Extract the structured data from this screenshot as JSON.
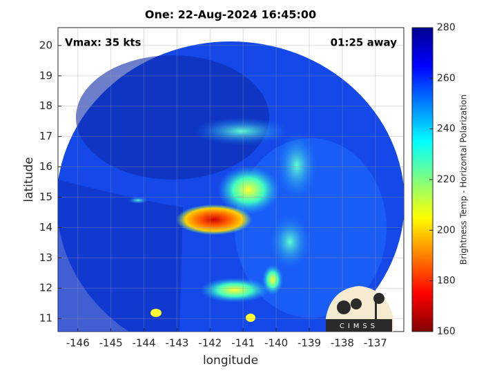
{
  "chart_data": {
    "type": "map",
    "title": "One: 22-Aug-2024 16:45:00",
    "annotations": [
      "Vmax: 35 kts",
      "01:25 away"
    ],
    "xlabel": "longitude",
    "ylabel": "latitude",
    "xlim": [
      -146.6,
      -136.14
    ],
    "xticks": [
      -146,
      -145,
      -144,
      -143,
      -142,
      -141,
      -140,
      -139,
      -138,
      -137
    ],
    "ylim": [
      10.57,
      20.59
    ],
    "yticks": [
      11,
      12,
      13,
      14,
      15,
      16,
      17,
      18,
      19,
      20
    ],
    "grid": true,
    "colorbar": {
      "label": "Brightness Temp - Horizontal Polarization",
      "lim": [
        160,
        280
      ],
      "ticks": [
        160,
        180,
        200,
        220,
        240,
        260,
        280
      ],
      "colormap": [
        "#800000",
        "#ff0000",
        "#ff8000",
        "#ffff00",
        "#80ff80",
        "#00ffff",
        "#0080ff",
        "#0000ff",
        "#00008f"
      ]
    },
    "logo": "CIMSS"
  }
}
